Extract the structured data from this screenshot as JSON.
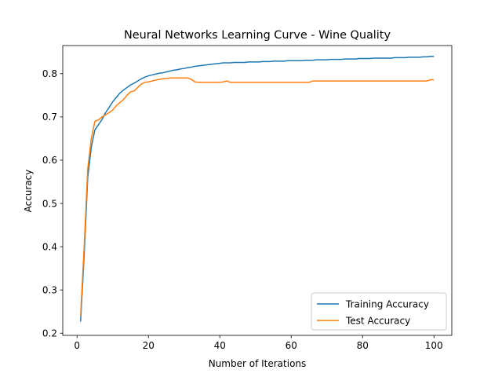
{
  "chart_data": {
    "type": "line",
    "title": "Neural Networks Learning Curve - Wine Quality",
    "xlabel": "Number of Iterations",
    "ylabel": "Accuracy",
    "xlim": [
      -4,
      105
    ],
    "ylim": [
      0.195,
      0.865
    ],
    "xticks": [
      0,
      20,
      40,
      60,
      80,
      100
    ],
    "yticks": [
      0.2,
      0.3,
      0.4,
      0.5,
      0.6,
      0.7,
      0.8
    ],
    "grid": false,
    "legend_position": "lower-right",
    "series": [
      {
        "name": "Training Accuracy",
        "color": "#1f77b4",
        "x": [
          1,
          2,
          3,
          4,
          5,
          6,
          7,
          8,
          9,
          10,
          11,
          12,
          13,
          14,
          15,
          16,
          17,
          18,
          19,
          20,
          21,
          22,
          23,
          24,
          25,
          26,
          27,
          28,
          29,
          30,
          31,
          32,
          33,
          34,
          35,
          36,
          37,
          38,
          39,
          40,
          41,
          42,
          43,
          44,
          45,
          46,
          47,
          48,
          49,
          50,
          51,
          52,
          53,
          54,
          55,
          56,
          57,
          58,
          59,
          60,
          61,
          62,
          63,
          64,
          65,
          66,
          67,
          68,
          69,
          70,
          71,
          72,
          73,
          74,
          75,
          76,
          77,
          78,
          79,
          80,
          81,
          82,
          83,
          84,
          85,
          86,
          87,
          88,
          89,
          90,
          91,
          92,
          93,
          94,
          95,
          96,
          97,
          98,
          99,
          100
        ],
        "y": [
          0.227,
          0.38,
          0.56,
          0.63,
          0.67,
          0.682,
          0.694,
          0.71,
          0.722,
          0.735,
          0.745,
          0.755,
          0.762,
          0.768,
          0.774,
          0.778,
          0.783,
          0.788,
          0.792,
          0.795,
          0.797,
          0.799,
          0.801,
          0.802,
          0.804,
          0.806,
          0.808,
          0.809,
          0.811,
          0.812,
          0.814,
          0.815,
          0.817,
          0.818,
          0.819,
          0.82,
          0.821,
          0.822,
          0.823,
          0.824,
          0.825,
          0.825,
          0.825,
          0.826,
          0.826,
          0.826,
          0.826,
          0.827,
          0.827,
          0.827,
          0.827,
          0.828,
          0.828,
          0.828,
          0.829,
          0.829,
          0.829,
          0.829,
          0.83,
          0.83,
          0.83,
          0.83,
          0.83,
          0.831,
          0.831,
          0.831,
          0.832,
          0.832,
          0.832,
          0.832,
          0.833,
          0.833,
          0.833,
          0.833,
          0.834,
          0.834,
          0.834,
          0.834,
          0.835,
          0.835,
          0.835,
          0.835,
          0.836,
          0.836,
          0.836,
          0.836,
          0.836,
          0.836,
          0.837,
          0.837,
          0.837,
          0.837,
          0.838,
          0.838,
          0.838,
          0.838,
          0.839,
          0.839,
          0.84,
          0.84
        ]
      },
      {
        "name": "Test Accuracy",
        "color": "#ff7f0e",
        "x": [
          1,
          2,
          3,
          4,
          5,
          6,
          7,
          8,
          9,
          10,
          11,
          12,
          13,
          14,
          15,
          16,
          17,
          18,
          19,
          20,
          21,
          22,
          23,
          24,
          25,
          26,
          27,
          28,
          29,
          30,
          31,
          32,
          33,
          34,
          35,
          36,
          37,
          38,
          39,
          40,
          41,
          42,
          43,
          44,
          45,
          46,
          47,
          48,
          49,
          50,
          51,
          52,
          53,
          54,
          55,
          56,
          57,
          58,
          59,
          60,
          61,
          62,
          63,
          64,
          65,
          66,
          67,
          68,
          69,
          70,
          71,
          72,
          73,
          74,
          75,
          76,
          77,
          78,
          79,
          80,
          81,
          82,
          83,
          84,
          85,
          86,
          87,
          88,
          89,
          90,
          91,
          92,
          93,
          94,
          95,
          96,
          97,
          98,
          99,
          100
        ],
        "y": [
          0.24,
          0.4,
          0.58,
          0.65,
          0.69,
          0.693,
          0.7,
          0.705,
          0.71,
          0.716,
          0.726,
          0.733,
          0.74,
          0.75,
          0.758,
          0.76,
          0.768,
          0.776,
          0.78,
          0.781,
          0.783,
          0.785,
          0.787,
          0.788,
          0.789,
          0.79,
          0.79,
          0.79,
          0.79,
          0.79,
          0.79,
          0.787,
          0.781,
          0.78,
          0.78,
          0.78,
          0.78,
          0.78,
          0.78,
          0.78,
          0.781,
          0.783,
          0.78,
          0.78,
          0.78,
          0.78,
          0.78,
          0.78,
          0.78,
          0.78,
          0.78,
          0.78,
          0.78,
          0.78,
          0.78,
          0.78,
          0.78,
          0.78,
          0.78,
          0.78,
          0.78,
          0.78,
          0.78,
          0.78,
          0.78,
          0.783,
          0.783,
          0.783,
          0.783,
          0.783,
          0.783,
          0.783,
          0.783,
          0.783,
          0.783,
          0.783,
          0.783,
          0.783,
          0.783,
          0.783,
          0.783,
          0.783,
          0.783,
          0.783,
          0.783,
          0.783,
          0.783,
          0.783,
          0.783,
          0.783,
          0.783,
          0.783,
          0.783,
          0.783,
          0.783,
          0.783,
          0.783,
          0.783,
          0.786,
          0.786
        ]
      }
    ]
  }
}
